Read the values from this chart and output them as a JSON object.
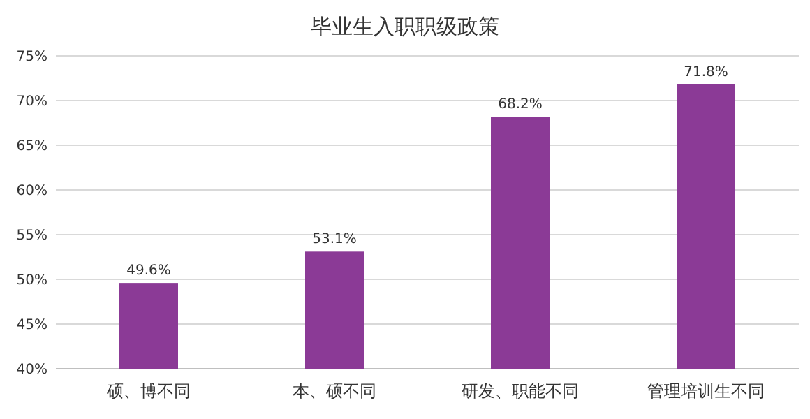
{
  "chart_data": {
    "type": "bar",
    "title": "毕业生入职职级政策",
    "categories": [
      "硕、博不同",
      "本、硕不同",
      "研发、职能不同",
      "管理培训生不同"
    ],
    "values": [
      49.6,
      53.1,
      68.2,
      71.8
    ],
    "color": "#8b3a96",
    "ylim": [
      40,
      75
    ],
    "yticks": [
      {
        "value": 40,
        "label": "40%"
      },
      {
        "value": 45,
        "label": "45%"
      },
      {
        "value": 50,
        "label": "50%"
      },
      {
        "value": 55,
        "label": "55%"
      },
      {
        "value": 60,
        "label": "60%"
      },
      {
        "value": 65,
        "label": "65%"
      },
      {
        "value": 70,
        "label": "70%"
      },
      {
        "value": 75,
        "label": "75%"
      }
    ],
    "grid": "y",
    "value_labels": [
      "49.6%",
      "53.1%",
      "68.2%",
      "71.8%"
    ]
  }
}
